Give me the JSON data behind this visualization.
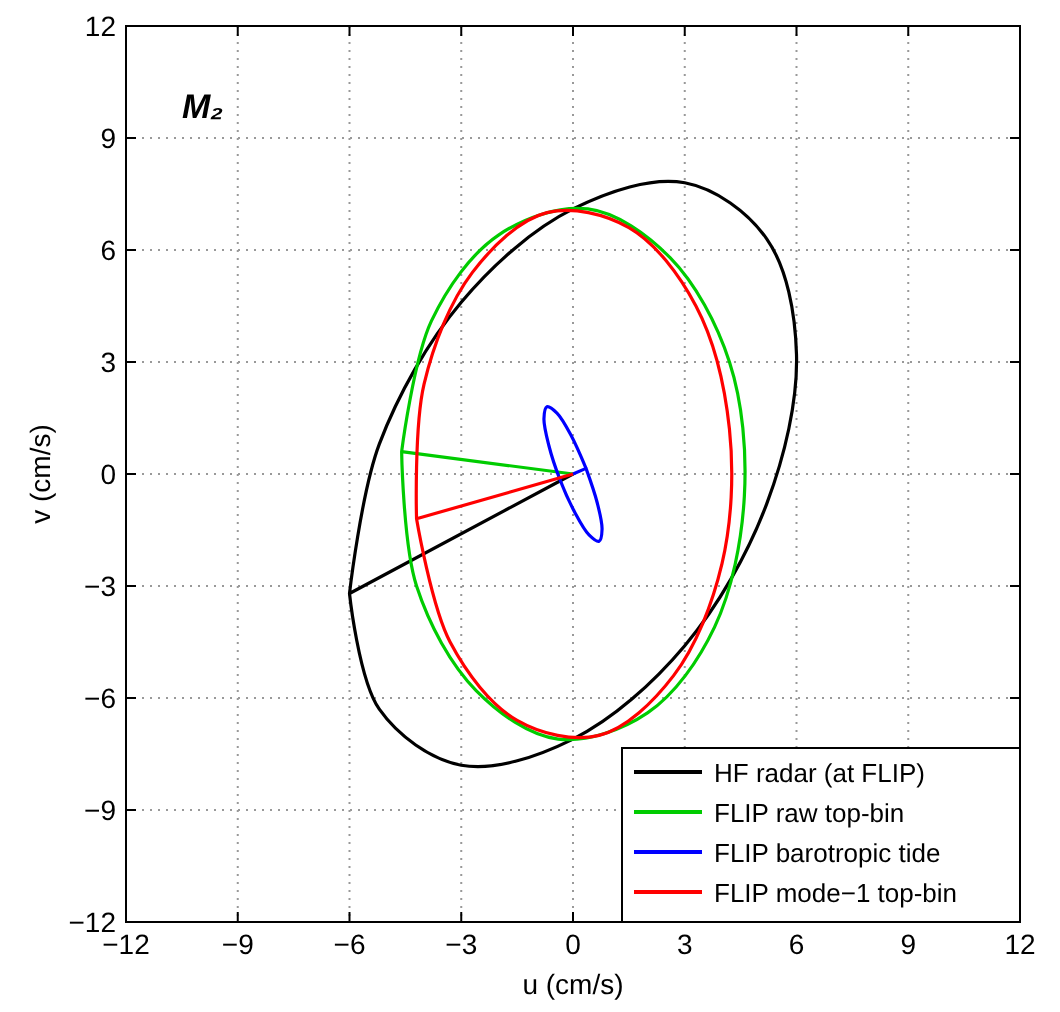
{
  "chart_data": {
    "type": "line",
    "xlabel": "u (cm/s)",
    "ylabel": "v (cm/s)",
    "annotations": [
      "M₂"
    ],
    "xlim": [
      -12,
      12
    ],
    "ylim": [
      -12,
      12
    ],
    "xticks": [
      -12,
      -9,
      -6,
      -3,
      0,
      3,
      6,
      9,
      12
    ],
    "yticks": [
      -12,
      -9,
      -6,
      -3,
      0,
      3,
      6,
      9,
      12
    ],
    "grid": true,
    "legend": "bottom right",
    "line_style": "solid",
    "marker": "none",
    "series": [
      {
        "name": "HF radar (at FLIP)",
        "color": "#000000",
        "x": [
          0,
          -6,
          -5.2,
          -3,
          0,
          3,
          5.2,
          6,
          5.2,
          3,
          0,
          -3,
          -5.2,
          -6
        ],
        "values": [
          0,
          -3.2,
          0.8,
          4.6,
          7.1,
          7.8,
          6.3,
          3.2,
          -0.8,
          -4.6,
          -7.1,
          -7.8,
          -6.3,
          -3.2
        ]
      },
      {
        "name": "FLIP raw top-bin",
        "color": "#00cc00",
        "x": [
          0,
          -4.6,
          -3.8,
          -2,
          0.4,
          2.6,
          4.2,
          4.6,
          3.8,
          2,
          -0.4,
          -2.6,
          -4.2,
          -4.6
        ],
        "values": [
          0,
          0.6,
          4.1,
          6.4,
          7.1,
          5.8,
          3,
          -0.6,
          -4.1,
          -6.4,
          -7.1,
          -5.8,
          -3,
          0.6
        ]
      },
      {
        "name": "FLIP barotropic tide",
        "color": "#0000ff",
        "x": [
          0,
          0.35,
          -0.05,
          -0.43,
          -0.7,
          -0.78,
          -0.65,
          -0.35,
          0.05,
          0.43,
          0.7,
          0.78,
          0.65,
          0.35
        ],
        "values": [
          0,
          0.15,
          1.03,
          1.63,
          1.8,
          1.48,
          0.77,
          -0.15,
          -1.03,
          -1.63,
          -1.8,
          -1.48,
          -0.77,
          0.15
        ]
      },
      {
        "name": "FLIP mode−1 top-bin",
        "color": "#ff0000",
        "x": [
          0,
          -4.2,
          -4,
          -2.7,
          -0.7,
          1.5,
          3.3,
          4.2,
          4,
          2.7,
          0.7,
          -1.5,
          -3.3,
          -4.2
        ],
        "values": [
          0,
          -1.2,
          2.4,
          5.4,
          7,
          6.6,
          4.5,
          1.2,
          -2.4,
          -5.4,
          -7,
          -6.6,
          -4.5,
          -1.2
        ]
      }
    ]
  }
}
